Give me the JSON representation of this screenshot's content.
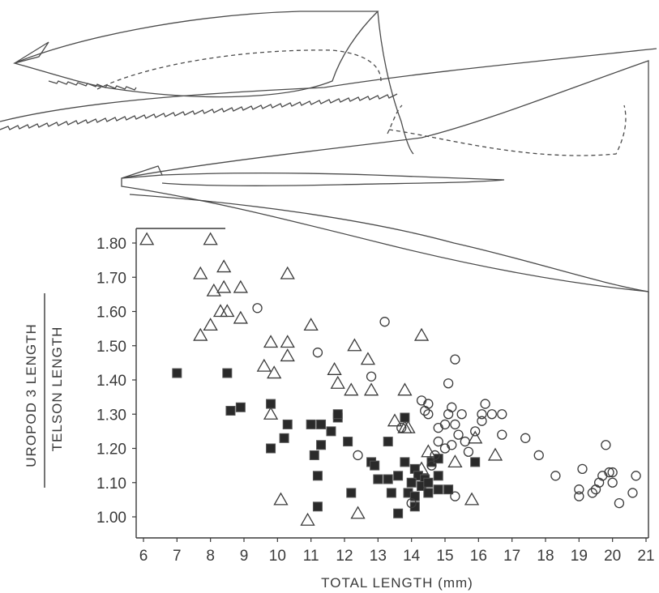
{
  "chart_data": {
    "type": "scatter",
    "xlabel": "TOTAL LENGTH (mm)",
    "ylabel_numerator": "UROPOD 3 LENGTH",
    "ylabel_denominator": "TELSON LENGTH",
    "xlim": [
      6,
      21
    ],
    "ylim": [
      0.97,
      1.83
    ],
    "x_ticks": [
      "6",
      "7",
      "8",
      "9",
      "10",
      "11",
      "12",
      "13",
      "14",
      "15",
      "16",
      "17",
      "18",
      "19",
      "20",
      "21"
    ],
    "y_ticks": [
      "1.80",
      "1.70",
      "1.60",
      "1.50",
      "1.40",
      "1.30",
      "1.20",
      "1.10",
      "1.00"
    ],
    "colors": {
      "axis": "#3a3a3a",
      "marker": "#3a3a3a",
      "filled": "#2a2a2a"
    },
    "series": [
      {
        "marker": "triangle-open",
        "points": [
          [
            6.1,
            1.81
          ],
          [
            8.0,
            1.81
          ],
          [
            7.7,
            1.71
          ],
          [
            8.4,
            1.73
          ],
          [
            8.1,
            1.66
          ],
          [
            8.4,
            1.67
          ],
          [
            8.9,
            1.67
          ],
          [
            10.3,
            1.71
          ],
          [
            8.3,
            1.6
          ],
          [
            8.5,
            1.6
          ],
          [
            8.0,
            1.56
          ],
          [
            7.7,
            1.53
          ],
          [
            8.9,
            1.58
          ],
          [
            9.8,
            1.51
          ],
          [
            10.3,
            1.51
          ],
          [
            11.0,
            1.56
          ],
          [
            12.3,
            1.5
          ],
          [
            12.7,
            1.46
          ],
          [
            14.3,
            1.53
          ],
          [
            10.3,
            1.47
          ],
          [
            9.6,
            1.44
          ],
          [
            9.9,
            1.42
          ],
          [
            11.7,
            1.43
          ],
          [
            11.8,
            1.39
          ],
          [
            12.2,
            1.37
          ],
          [
            12.8,
            1.37
          ],
          [
            13.8,
            1.37
          ],
          [
            9.8,
            1.3
          ],
          [
            13.5,
            1.28
          ],
          [
            13.9,
            1.26
          ],
          [
            13.8,
            1.26
          ],
          [
            14.5,
            1.19
          ],
          [
            15.3,
            1.16
          ],
          [
            16.5,
            1.18
          ],
          [
            15.9,
            1.23
          ],
          [
            14.3,
            1.14
          ],
          [
            10.1,
            1.05
          ],
          [
            10.9,
            0.99
          ],
          [
            12.4,
            1.01
          ],
          [
            15.8,
            1.05
          ]
        ]
      },
      {
        "marker": "square-filled",
        "points": [
          [
            7.0,
            1.42
          ],
          [
            8.5,
            1.42
          ],
          [
            8.6,
            1.31
          ],
          [
            8.9,
            1.32
          ],
          [
            9.8,
            1.33
          ],
          [
            10.3,
            1.27
          ],
          [
            11.0,
            1.27
          ],
          [
            11.3,
            1.27
          ],
          [
            11.6,
            1.25
          ],
          [
            11.8,
            1.29
          ],
          [
            11.8,
            1.3
          ],
          [
            9.8,
            1.2
          ],
          [
            10.2,
            1.23
          ],
          [
            11.1,
            1.18
          ],
          [
            11.3,
            1.21
          ],
          [
            12.1,
            1.22
          ],
          [
            13.3,
            1.22
          ],
          [
            13.8,
            1.29
          ],
          [
            12.8,
            1.16
          ],
          [
            12.9,
            1.15
          ],
          [
            11.2,
            1.12
          ],
          [
            12.2,
            1.07
          ],
          [
            11.2,
            1.03
          ],
          [
            13.0,
            1.11
          ],
          [
            13.3,
            1.11
          ],
          [
            13.6,
            1.12
          ],
          [
            13.8,
            1.16
          ],
          [
            14.1,
            1.14
          ],
          [
            14.2,
            1.12
          ],
          [
            14.4,
            1.11
          ],
          [
            14.6,
            1.16
          ],
          [
            14.8,
            1.17
          ],
          [
            14.8,
            1.12
          ],
          [
            14.0,
            1.1
          ],
          [
            14.3,
            1.09
          ],
          [
            14.5,
            1.1
          ],
          [
            13.4,
            1.07
          ],
          [
            13.9,
            1.07
          ],
          [
            14.1,
            1.06
          ],
          [
            14.5,
            1.07
          ],
          [
            14.8,
            1.08
          ],
          [
            15.1,
            1.08
          ],
          [
            13.6,
            1.01
          ],
          [
            14.1,
            1.03
          ],
          [
            15.9,
            1.16
          ]
        ]
      },
      {
        "marker": "circle-open",
        "points": [
          [
            9.4,
            1.61
          ],
          [
            13.2,
            1.57
          ],
          [
            11.2,
            1.48
          ],
          [
            15.3,
            1.46
          ],
          [
            12.8,
            1.41
          ],
          [
            15.1,
            1.39
          ],
          [
            14.3,
            1.34
          ],
          [
            14.5,
            1.33
          ],
          [
            15.2,
            1.32
          ],
          [
            14.4,
            1.31
          ],
          [
            14.5,
            1.3
          ],
          [
            15.1,
            1.3
          ],
          [
            15.5,
            1.3
          ],
          [
            16.2,
            1.33
          ],
          [
            14.8,
            1.26
          ],
          [
            15.0,
            1.27
          ],
          [
            15.3,
            1.27
          ],
          [
            16.1,
            1.28
          ],
          [
            16.1,
            1.3
          ],
          [
            16.4,
            1.3
          ],
          [
            16.7,
            1.3
          ],
          [
            15.4,
            1.24
          ],
          [
            15.6,
            1.22
          ],
          [
            15.2,
            1.21
          ],
          [
            15.0,
            1.2
          ],
          [
            14.8,
            1.22
          ],
          [
            14.7,
            1.18
          ],
          [
            14.6,
            1.15
          ],
          [
            15.7,
            1.19
          ],
          [
            15.9,
            1.25
          ],
          [
            16.7,
            1.24
          ],
          [
            17.4,
            1.23
          ],
          [
            17.8,
            1.18
          ],
          [
            13.7,
            1.26
          ],
          [
            12.4,
            1.18
          ],
          [
            14.0,
            1.04
          ],
          [
            15.3,
            1.06
          ],
          [
            18.3,
            1.12
          ],
          [
            19.1,
            1.14
          ],
          [
            19.0,
            1.08
          ],
          [
            19.0,
            1.06
          ],
          [
            19.5,
            1.08
          ],
          [
            19.4,
            1.07
          ],
          [
            19.6,
            1.1
          ],
          [
            19.7,
            1.12
          ],
          [
            19.9,
            1.13
          ],
          [
            19.8,
            1.21
          ],
          [
            20.0,
            1.13
          ],
          [
            20.0,
            1.1
          ],
          [
            20.2,
            1.04
          ],
          [
            20.7,
            1.12
          ],
          [
            20.6,
            1.07
          ]
        ]
      }
    ]
  }
}
